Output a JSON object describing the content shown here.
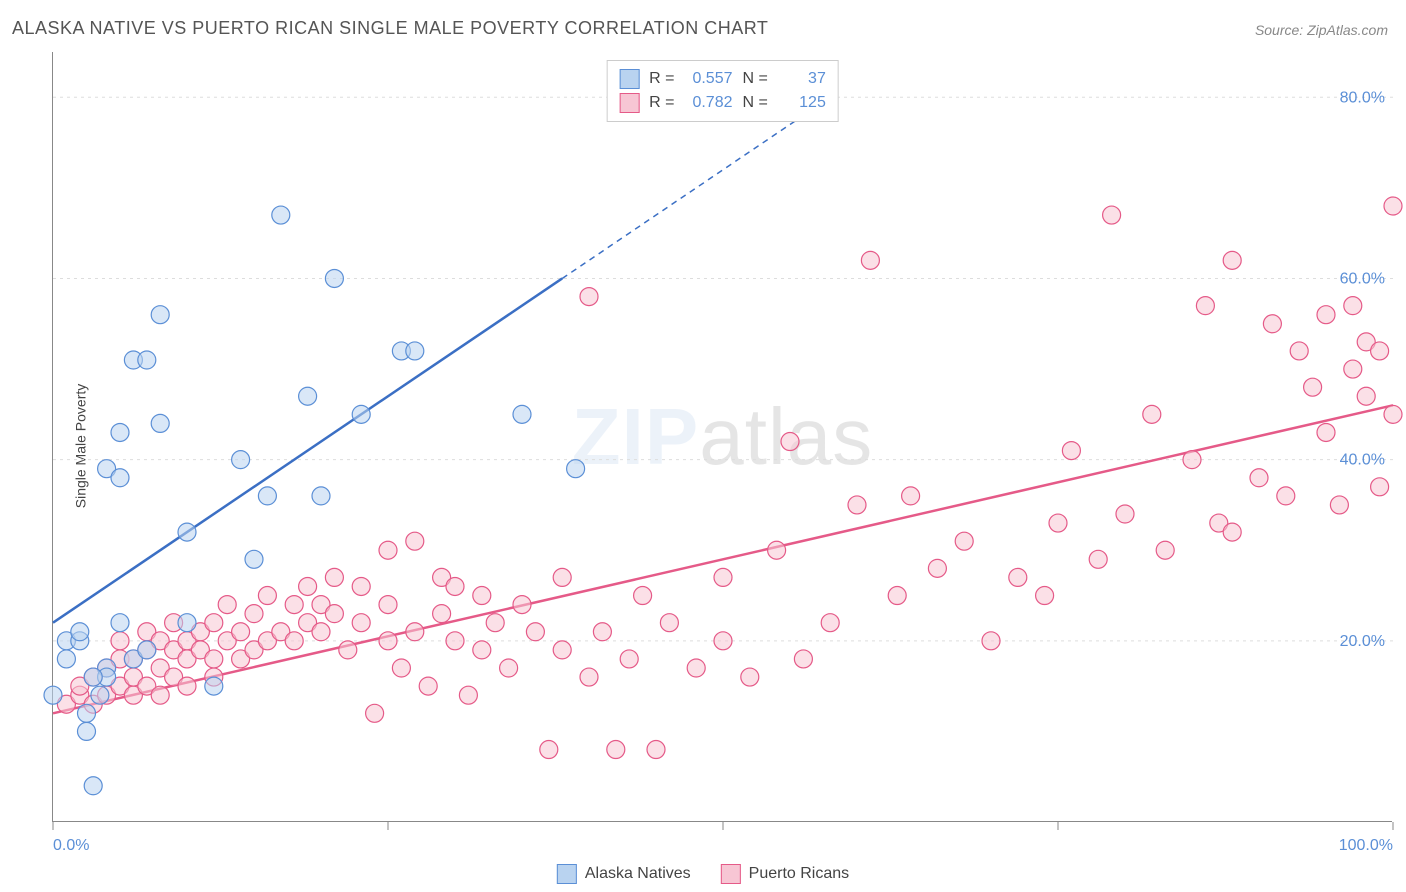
{
  "title": "ALASKA NATIVE VS PUERTO RICAN SINGLE MALE POVERTY CORRELATION CHART",
  "source": "Source: ZipAtlas.com",
  "y_axis_label": "Single Male Poverty",
  "watermark_bold": "ZIP",
  "watermark_rest": "atlas",
  "legend": {
    "series1": "Alaska Natives",
    "series2": "Puerto Ricans"
  },
  "stats": {
    "series1": {
      "r_label": "R =",
      "r_value": "0.557",
      "n_label": "N =",
      "n_value": "37"
    },
    "series2": {
      "r_label": "R =",
      "r_value": "0.782",
      "n_label": "N =",
      "n_value": "125"
    }
  },
  "colors": {
    "series1_fill": "#b9d3f0",
    "series1_stroke": "#5b8fd6",
    "series1_line": "#3b6fc4",
    "series2_fill": "#f7c6d4",
    "series2_stroke": "#e55a88",
    "series2_line": "#e55a88",
    "axis_tick_text": "#5b8fd6",
    "grid": "#dddddd",
    "background": "#ffffff"
  },
  "chart": {
    "type": "scatter",
    "xlim": [
      0,
      100
    ],
    "ylim": [
      0,
      85
    ],
    "x_ticks": [
      0,
      25,
      50,
      75,
      100
    ],
    "y_ticks": [
      20,
      40,
      60,
      80
    ],
    "y_tick_labels": [
      "20.0%",
      "40.0%",
      "60.0%",
      "80.0%"
    ],
    "x_tick_labels": [
      "0.0%",
      "100.0%"
    ],
    "marker_radius": 9,
    "marker_opacity": 0.55,
    "line_width": 2.5,
    "series1_line": {
      "x1": 0,
      "y1": 22,
      "x2": 38,
      "y2": 60,
      "x2_dash": 58,
      "y2_dash": 80
    },
    "series2_line": {
      "x1": 0,
      "y1": 12,
      "x2": 100,
      "y2": 46
    },
    "series1_points": [
      [
        0,
        14
      ],
      [
        1,
        18
      ],
      [
        1,
        20
      ],
      [
        2,
        20
      ],
      [
        2,
        21
      ],
      [
        2.5,
        12
      ],
      [
        2.5,
        10
      ],
      [
        3,
        4
      ],
      [
        3.5,
        14
      ],
      [
        4,
        17
      ],
      [
        4,
        39
      ],
      [
        5,
        38
      ],
      [
        5,
        43
      ],
      [
        6,
        51
      ],
      [
        7,
        51
      ],
      [
        8,
        56
      ],
      [
        8,
        44
      ],
      [
        10,
        22
      ],
      [
        10,
        32
      ],
      [
        12,
        15
      ],
      [
        14,
        40
      ],
      [
        15,
        29
      ],
      [
        16,
        36
      ],
      [
        17,
        67
      ],
      [
        19,
        47
      ],
      [
        20,
        36
      ],
      [
        21,
        60
      ],
      [
        23,
        45
      ],
      [
        26,
        52
      ],
      [
        27,
        52
      ],
      [
        35,
        45
      ],
      [
        39,
        39
      ],
      [
        4,
        16
      ],
      [
        6,
        18
      ],
      [
        7,
        19
      ],
      [
        3,
        16
      ],
      [
        5,
        22
      ]
    ],
    "series2_points": [
      [
        1,
        13
      ],
      [
        2,
        14
      ],
      [
        2,
        15
      ],
      [
        3,
        13
      ],
      [
        3,
        16
      ],
      [
        4,
        14
      ],
      [
        4,
        17
      ],
      [
        5,
        15
      ],
      [
        5,
        18
      ],
      [
        5,
        20
      ],
      [
        6,
        14
      ],
      [
        6,
        16
      ],
      [
        6,
        18
      ],
      [
        7,
        15
      ],
      [
        7,
        19
      ],
      [
        7,
        21
      ],
      [
        8,
        14
      ],
      [
        8,
        17
      ],
      [
        8,
        20
      ],
      [
        9,
        16
      ],
      [
        9,
        19
      ],
      [
        9,
        22
      ],
      [
        10,
        15
      ],
      [
        10,
        18
      ],
      [
        10,
        20
      ],
      [
        11,
        19
      ],
      [
        11,
        21
      ],
      [
        12,
        16
      ],
      [
        12,
        18
      ],
      [
        12,
        22
      ],
      [
        13,
        20
      ],
      [
        13,
        24
      ],
      [
        14,
        18
      ],
      [
        14,
        21
      ],
      [
        15,
        19
      ],
      [
        15,
        23
      ],
      [
        16,
        20
      ],
      [
        16,
        25
      ],
      [
        17,
        21
      ],
      [
        18,
        20
      ],
      [
        18,
        24
      ],
      [
        19,
        22
      ],
      [
        19,
        26
      ],
      [
        20,
        21
      ],
      [
        20,
        24
      ],
      [
        21,
        23
      ],
      [
        21,
        27
      ],
      [
        22,
        19
      ],
      [
        23,
        22
      ],
      [
        23,
        26
      ],
      [
        24,
        12
      ],
      [
        25,
        20
      ],
      [
        25,
        24
      ],
      [
        25,
        30
      ],
      [
        26,
        17
      ],
      [
        27,
        21
      ],
      [
        27,
        31
      ],
      [
        28,
        15
      ],
      [
        29,
        23
      ],
      [
        29,
        27
      ],
      [
        30,
        20
      ],
      [
        30,
        26
      ],
      [
        31,
        14
      ],
      [
        32,
        19
      ],
      [
        32,
        25
      ],
      [
        33,
        22
      ],
      [
        34,
        17
      ],
      [
        35,
        24
      ],
      [
        36,
        21
      ],
      [
        37,
        8
      ],
      [
        38,
        19
      ],
      [
        38,
        27
      ],
      [
        40,
        16
      ],
      [
        40,
        58
      ],
      [
        41,
        21
      ],
      [
        42,
        8
      ],
      [
        43,
        18
      ],
      [
        44,
        25
      ],
      [
        45,
        8
      ],
      [
        46,
        22
      ],
      [
        48,
        17
      ],
      [
        50,
        20
      ],
      [
        50,
        27
      ],
      [
        52,
        16
      ],
      [
        54,
        30
      ],
      [
        55,
        42
      ],
      [
        56,
        18
      ],
      [
        58,
        22
      ],
      [
        60,
        35
      ],
      [
        61,
        62
      ],
      [
        63,
        25
      ],
      [
        64,
        36
      ],
      [
        66,
        28
      ],
      [
        68,
        31
      ],
      [
        70,
        20
      ],
      [
        72,
        27
      ],
      [
        74,
        25
      ],
      [
        75,
        33
      ],
      [
        76,
        41
      ],
      [
        78,
        29
      ],
      [
        79,
        67
      ],
      [
        80,
        34
      ],
      [
        82,
        45
      ],
      [
        83,
        30
      ],
      [
        85,
        40
      ],
      [
        86,
        57
      ],
      [
        87,
        33
      ],
      [
        88,
        62
      ],
      [
        90,
        38
      ],
      [
        91,
        55
      ],
      [
        92,
        36
      ],
      [
        93,
        52
      ],
      [
        94,
        48
      ],
      [
        95,
        56
      ],
      [
        95,
        43
      ],
      [
        96,
        35
      ],
      [
        97,
        50
      ],
      [
        97,
        57
      ],
      [
        98,
        47
      ],
      [
        98,
        53
      ],
      [
        99,
        37
      ],
      [
        99,
        52
      ],
      [
        100,
        68
      ],
      [
        100,
        45
      ],
      [
        88,
        32
      ]
    ]
  }
}
